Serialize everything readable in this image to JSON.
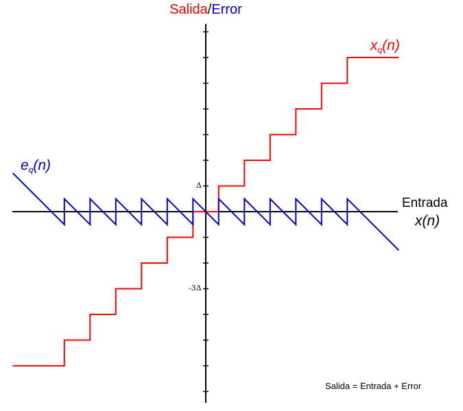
{
  "title": {
    "part1": "Salida",
    "separator": "/",
    "part2": "Error"
  },
  "colors": {
    "output": "#ff0000",
    "error": "#0000cc",
    "axis": "#000000"
  },
  "x_axis": {
    "label_word": "Entrada",
    "label_symbol": "x(n)"
  },
  "output_label": {
    "base": "x",
    "sub": "q",
    "arg": "(n)"
  },
  "error_label": {
    "base": "e",
    "sub": "q",
    "arg": "(n)"
  },
  "tick_labels": {
    "delta": "Δ",
    "minus3delta": "-3Δ"
  },
  "footnote": "Salida = Entrada + Error",
  "chart_data": {
    "type": "line",
    "step_unit": "Δ",
    "x_range_delta": [
      -7.5,
      7.5
    ],
    "y_range_delta": [
      -6,
      7
    ],
    "series": [
      {
        "name": "x_q(n)",
        "kind": "staircase",
        "points": [
          [
            -7.5,
            -6
          ],
          [
            -5.5,
            -6
          ],
          [
            -5.5,
            -5
          ],
          [
            -4.5,
            -5
          ],
          [
            -4.5,
            -4
          ],
          [
            -3.5,
            -4
          ],
          [
            -3.5,
            -3
          ],
          [
            -2.5,
            -3
          ],
          [
            -2.5,
            -2
          ],
          [
            -1.5,
            -2
          ],
          [
            -1.5,
            -1
          ],
          [
            -0.5,
            -1
          ],
          [
            -0.5,
            0
          ],
          [
            0.5,
            0
          ],
          [
            0.5,
            0.5
          ],
          [
            0.5,
            1
          ],
          [
            1.5,
            1
          ],
          [
            1.5,
            2
          ],
          [
            2.5,
            2
          ],
          [
            2.5,
            3
          ],
          [
            3.5,
            3
          ],
          [
            3.5,
            4
          ],
          [
            4.5,
            4
          ],
          [
            4.5,
            5
          ],
          [
            5.5,
            5
          ],
          [
            5.5,
            6
          ],
          [
            7.5,
            6
          ]
        ]
      },
      {
        "name": "e_q(n)",
        "kind": "sawtooth",
        "points": [
          [
            -7.5,
            1.5
          ],
          [
            -5.5,
            -0.5
          ],
          [
            -5.5,
            0.5
          ],
          [
            -4.5,
            -0.5
          ],
          [
            -4.5,
            0.5
          ],
          [
            -3.5,
            -0.5
          ],
          [
            -3.5,
            0.5
          ],
          [
            -2.5,
            -0.5
          ],
          [
            -2.5,
            0.5
          ],
          [
            -1.5,
            -0.5
          ],
          [
            -1.5,
            0.5
          ],
          [
            -0.5,
            -0.5
          ],
          [
            -0.5,
            0.5
          ],
          [
            0.5,
            -0.5
          ],
          [
            0.5,
            0.5
          ],
          [
            1.5,
            -0.5
          ],
          [
            1.5,
            0.5
          ],
          [
            2.5,
            -0.5
          ],
          [
            2.5,
            0.5
          ],
          [
            3.5,
            -0.5
          ],
          [
            3.5,
            0.5
          ],
          [
            4.5,
            -0.5
          ],
          [
            4.5,
            0.5
          ],
          [
            5.5,
            -0.5
          ],
          [
            5.5,
            0.5
          ],
          [
            7.5,
            -1.5
          ]
        ]
      }
    ],
    "y_ticks_delta": [
      -7,
      -6,
      -5,
      -4,
      -3,
      -2,
      -1,
      1,
      2,
      3,
      4,
      5,
      6,
      7
    ]
  }
}
